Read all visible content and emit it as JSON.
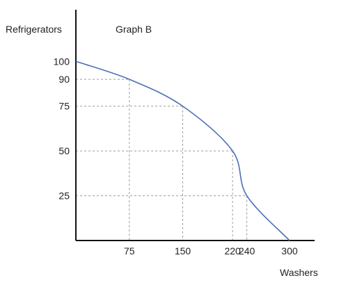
{
  "chart_data": {
    "type": "line",
    "title": "Graph B",
    "xlabel": "Washers",
    "ylabel": "Refrigerators",
    "x_ticks": [
      75,
      150,
      220,
      240,
      300
    ],
    "y_ticks": [
      25,
      50,
      75,
      90,
      100
    ],
    "xlim": [
      0,
      330
    ],
    "ylim": [
      0,
      120
    ],
    "grid": "dashed reference lines at labeled points",
    "series": [
      {
        "color": "#4a6fb5",
        "x": [
          0,
          75,
          150,
          220,
          240,
          300
        ],
        "y": [
          100,
          90,
          75,
          50,
          25,
          0
        ]
      }
    ]
  }
}
